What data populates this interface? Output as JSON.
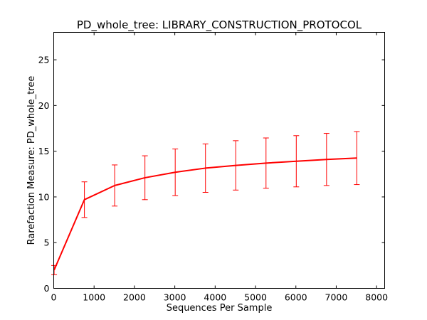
{
  "chart_data": {
    "type": "line",
    "title": "PD_whole_tree: LIBRARY_CONSTRUCTION_PROTOCOL",
    "xlabel": "Sequences Per Sample",
    "ylabel": "Rarefaction Measure: PD_whole_tree",
    "xlim": [
      0,
      8200
    ],
    "ylim": [
      0,
      28
    ],
    "x_ticks": [
      0,
      1000,
      2000,
      3000,
      4000,
      5000,
      6000,
      7000,
      8000
    ],
    "y_ticks": [
      0,
      5,
      10,
      15,
      20,
      25
    ],
    "grid": false,
    "legend": "none",
    "series": [
      {
        "color": "#ff0000",
        "x": [
          10,
          760,
          1510,
          2260,
          3010,
          3760,
          4510,
          5260,
          6010,
          6760,
          7510
        ],
        "y": [
          2.0,
          9.7,
          11.25,
          12.1,
          12.7,
          13.15,
          13.45,
          13.7,
          13.9,
          14.1,
          14.25
        ],
        "error": [
          0.5,
          1.95,
          2.25,
          2.4,
          2.55,
          2.65,
          2.7,
          2.75,
          2.8,
          2.85,
          2.9
        ]
      }
    ]
  }
}
